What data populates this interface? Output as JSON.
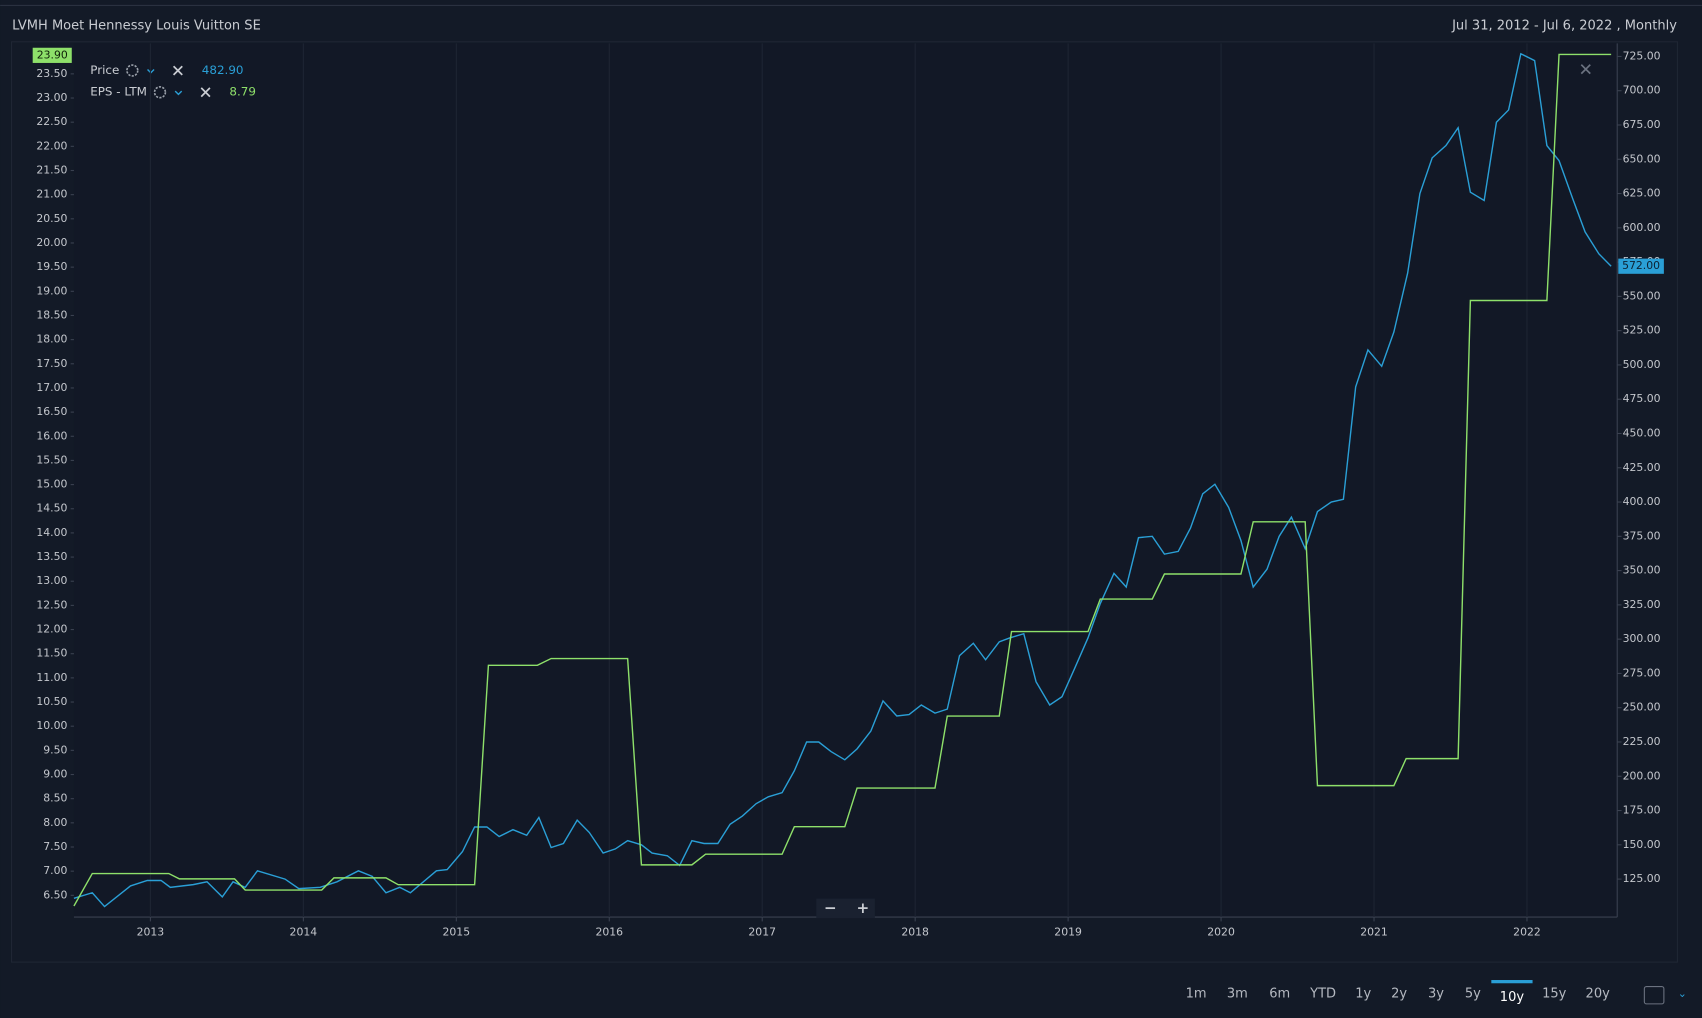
{
  "header": {
    "title": "LVMH Moet Hennessy Louis Vuitton SE",
    "range": "Jul 31, 2012 - Jul 6, 2022 , Monthly"
  },
  "ranges": {
    "items": [
      "1m",
      "3m",
      "6m",
      "YTD",
      "1y",
      "2y",
      "3y",
      "5y",
      "10y",
      "15y",
      "20y"
    ],
    "active": 8
  },
  "zoom": [
    "−",
    "+"
  ],
  "chart_data": {
    "type": "line",
    "xlim": [
      2012.5,
      2022.59
    ],
    "xticks": [
      2013,
      2014,
      2015,
      2016,
      2017,
      2018,
      2019,
      2020,
      2021,
      2022
    ],
    "grid": true,
    "ylim": [
      6.05,
      24.13
    ],
    "yticks": [
      {
        "value": 6.5,
        "label": "6.50"
      },
      {
        "value": 7,
        "label": "7.00"
      },
      {
        "value": 7.5,
        "label": "7.50"
      },
      {
        "value": 8,
        "label": "8.00"
      },
      {
        "value": 8.5,
        "label": "8.50"
      },
      {
        "value": 9,
        "label": "9.00"
      },
      {
        "value": 9.5,
        "label": "9.50"
      },
      {
        "value": 10,
        "label": "10.00"
      },
      {
        "value": 10.5,
        "label": "10.50"
      },
      {
        "value": 11,
        "label": "11.00"
      },
      {
        "value": 11.5,
        "label": "11.50"
      },
      {
        "value": 12,
        "label": "12.00"
      },
      {
        "value": 12.5,
        "label": "12.50"
      },
      {
        "value": 13,
        "label": "13.00"
      },
      {
        "value": 13.5,
        "label": "13.50"
      },
      {
        "value": 14,
        "label": "14.00"
      },
      {
        "value": 14.5,
        "label": "14.50"
      },
      {
        "value": 15,
        "label": "15.00"
      },
      {
        "value": 15.5,
        "label": "15.50"
      },
      {
        "value": 16,
        "label": "16.00"
      },
      {
        "value": 16.5,
        "label": "16.50"
      },
      {
        "value": 17,
        "label": "17.00"
      },
      {
        "value": 17.5,
        "label": "17.50"
      },
      {
        "value": 18,
        "label": "18.00"
      },
      {
        "value": 18.5,
        "label": "18.50"
      },
      {
        "value": 19,
        "label": "19.00"
      },
      {
        "value": 19.5,
        "label": "19.50"
      },
      {
        "value": 20,
        "label": "20.00"
      },
      {
        "value": 20.5,
        "label": "20.50"
      },
      {
        "value": 21,
        "label": "21.00"
      },
      {
        "value": 21.5,
        "label": "21.50"
      },
      {
        "value": 22,
        "label": "22.00"
      },
      {
        "value": 22.5,
        "label": "22.50"
      },
      {
        "value": 23,
        "label": "23.00"
      },
      {
        "value": 23.5,
        "label": "23.50"
      }
    ],
    "y2lim": [
      97.3,
      734.5
    ],
    "y2ticks": [
      {
        "value": 125,
        "label": "125.00"
      },
      {
        "value": 150,
        "label": "150.00"
      },
      {
        "value": 175,
        "label": "175.00"
      },
      {
        "value": 200,
        "label": "200.00"
      },
      {
        "value": 225,
        "label": "225.00"
      },
      {
        "value": 250,
        "label": "250.00"
      },
      {
        "value": 275,
        "label": "275.00"
      },
      {
        "value": 300,
        "label": "300.00"
      },
      {
        "value": 325,
        "label": "325.00"
      },
      {
        "value": 350,
        "label": "350.00"
      },
      {
        "value": 375,
        "label": "375.00"
      },
      {
        "value": 400,
        "label": "400.00"
      },
      {
        "value": 425,
        "label": "425.00"
      },
      {
        "value": 450,
        "label": "450.00"
      },
      {
        "value": 475,
        "label": "475.00"
      },
      {
        "value": 500,
        "label": "500.00"
      },
      {
        "value": 525,
        "label": "525.00"
      },
      {
        "value": 550,
        "label": "550.00"
      },
      {
        "value": 575,
        "label": "575.00"
      },
      {
        "value": 600,
        "label": "600.00"
      },
      {
        "value": 625,
        "label": "625.00"
      },
      {
        "value": 650,
        "label": "650.00"
      },
      {
        "value": 675,
        "label": "675.00"
      },
      {
        "value": 700,
        "label": "700.00"
      },
      {
        "value": 725,
        "label": "725.00"
      }
    ],
    "series": [
      {
        "name": "Price",
        "legend_value": "482.90",
        "last_label": "572.00",
        "color": "#2a9fd6",
        "axis": "y2",
        "x": [
          2012.5,
          2012.62,
          2012.7,
          2012.87,
          2012.98,
          2013.07,
          2013.13,
          2013.28,
          2013.37,
          2013.47,
          2013.54,
          2013.62,
          2013.7,
          2013.88,
          2013.97,
          2014.11,
          2014.22,
          2014.36,
          2014.45,
          2014.54,
          2014.63,
          2014.7,
          2014.87,
          2014.94,
          2015.04,
          2015.12,
          2015.2,
          2015.28,
          2015.37,
          2015.46,
          2015.54,
          2015.62,
          2015.7,
          2015.79,
          2015.87,
          2015.96,
          2016.04,
          2016.12,
          2016.21,
          2016.28,
          2016.38,
          2016.46,
          2016.54,
          2016.62,
          2016.71,
          2016.79,
          2016.87,
          2016.96,
          2017.04,
          2017.13,
          2017.21,
          2017.29,
          2017.37,
          2017.45,
          2017.54,
          2017.62,
          2017.71,
          2017.79,
          2017.88,
          2017.96,
          2018.04,
          2018.13,
          2018.21,
          2018.29,
          2018.38,
          2018.46,
          2018.55,
          2018.62,
          2018.71,
          2018.79,
          2018.88,
          2018.96,
          2019.04,
          2019.13,
          2019.21,
          2019.3,
          2019.38,
          2019.46,
          2019.55,
          2019.63,
          2019.72,
          2019.8,
          2019.88,
          2019.96,
          2020.05,
          2020.13,
          2020.21,
          2020.3,
          2020.38,
          2020.46,
          2020.55,
          2020.63,
          2020.72,
          2020.8,
          2020.88,
          2020.96,
          2021.05,
          2021.13,
          2021.22,
          2021.3,
          2021.38,
          2021.47,
          2021.55,
          2021.63,
          2021.72,
          2021.8,
          2021.88,
          2021.96,
          2022.05,
          2022.13,
          2022.21,
          2022.3,
          2022.38,
          2022.47,
          2022.55
        ],
        "values": [
          111,
          115,
          105,
          120,
          124,
          124,
          119,
          121,
          123,
          112,
          123,
          119,
          131,
          125,
          118,
          119,
          123,
          131,
          127,
          115,
          119,
          115,
          131,
          132,
          145,
          163,
          163,
          156,
          161,
          157,
          170,
          148,
          151,
          168,
          159,
          144,
          147,
          153,
          150,
          144,
          142,
          135,
          153,
          151,
          151,
          165,
          171,
          180,
          185,
          188,
          204,
          225,
          225,
          218,
          212,
          220,
          233,
          255,
          244,
          245,
          252,
          246,
          249,
          288,
          297,
          285,
          298,
          301,
          304,
          269,
          252,
          258,
          278,
          301,
          326,
          348,
          338,
          374,
          375,
          362,
          364,
          381,
          406,
          413,
          396,
          372,
          338,
          351,
          375,
          389,
          366,
          393,
          400,
          402,
          484,
          511,
          499,
          524,
          567,
          625,
          651,
          660,
          673,
          626,
          620,
          677,
          686,
          727,
          722,
          660,
          649,
          621,
          597,
          581,
          572
        ]
      },
      {
        "name": "EPS - LTM",
        "legend_value": "8.79",
        "last_label": "23.90",
        "color": "#8ee06a",
        "x": [
          2012.5,
          2012.62,
          2013.12,
          2013.19,
          2013.55,
          2013.62,
          2014.12,
          2014.2,
          2014.54,
          2014.62,
          2015.12,
          2015.21,
          2015.53,
          2015.62,
          2016.12,
          2016.21,
          2016.54,
          2016.63,
          2017.13,
          2017.21,
          2017.54,
          2017.62,
          2018.13,
          2018.21,
          2018.55,
          2018.63,
          2019.13,
          2019.21,
          2019.55,
          2019.63,
          2020.13,
          2020.21,
          2020.55,
          2020.63,
          2021.13,
          2021.21,
          2021.55,
          2021.63,
          2022.13,
          2022.21,
          2022.55
        ],
        "values": [
          6.28,
          6.95,
          6.95,
          6.84,
          6.84,
          6.61,
          6.61,
          6.86,
          6.86,
          6.72,
          6.72,
          11.26,
          11.26,
          11.4,
          11.4,
          7.13,
          7.13,
          7.35,
          7.35,
          7.92,
          7.92,
          8.72,
          8.72,
          10.21,
          10.21,
          11.96,
          11.96,
          12.63,
          12.63,
          13.15,
          13.15,
          14.23,
          14.23,
          8.77,
          8.77,
          9.33,
          9.33,
          18.81,
          18.81,
          23.9,
          23.9
        ]
      }
    ]
  }
}
